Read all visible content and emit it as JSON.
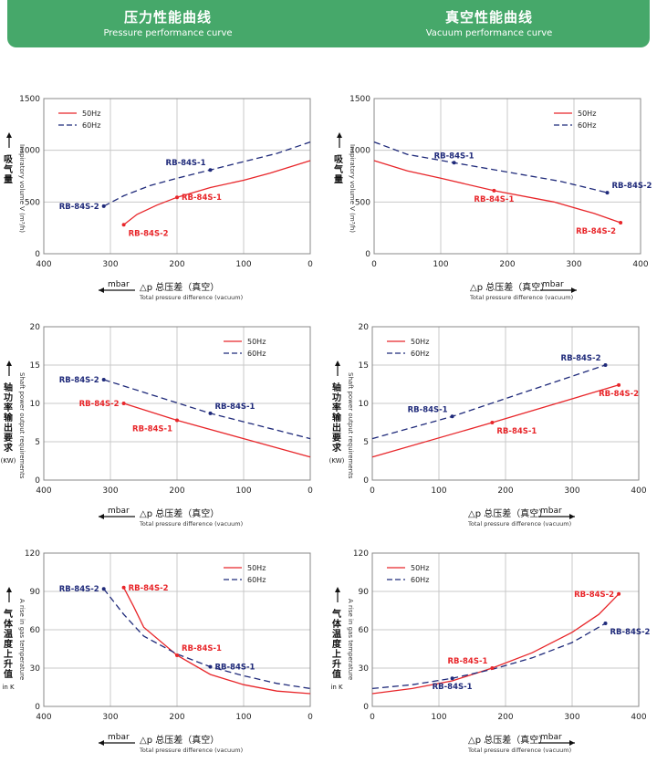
{
  "header": {
    "left_title": "压力性能曲线",
    "left_subtitle": "Pressure performance curve",
    "right_title": "真空性能曲线",
    "right_subtitle": "Vacuum performance curve"
  },
  "colors": {
    "hz50": "#e8262a",
    "hz60": "#1f2a7a",
    "header_bg": "#46a86a",
    "grid": "#c8c8c8"
  },
  "chart_data": [
    {
      "type": "line",
      "ylabel_cn": "吸气量",
      "ylabel_en": "Inspiratory volume",
      "ylabel_unit": "V (m³/h)",
      "xlabel_arrow": "mbar",
      "xlabel_cn": "△p 总压差（真空）",
      "xlabel_en": "Total pressure difference (vacuum)",
      "xlim": [
        400,
        0
      ],
      "ylim": [
        0,
        1500
      ],
      "xticks": [
        400,
        300,
        200,
        100,
        0
      ],
      "yticks": [
        0,
        500,
        1000,
        1500
      ],
      "legend": "top-left",
      "series": [
        {
          "name": "50Hz",
          "style": "solid",
          "x": [
            280,
            260,
            230,
            200,
            150,
            100,
            60,
            0
          ],
          "y": [
            280,
            380,
            470,
            545,
            640,
            710,
            780,
            900
          ]
        },
        {
          "name": "60Hz",
          "style": "dashed",
          "x": [
            310,
            280,
            240,
            200,
            150,
            100,
            50,
            0
          ],
          "y": [
            460,
            560,
            660,
            730,
            810,
            890,
            970,
            1080
          ]
        }
      ],
      "labels": [
        {
          "text": "RB-84S-1",
          "x": 150,
          "y": 810,
          "series": 1,
          "pos": "above-left"
        },
        {
          "text": "RB-84S-2",
          "x": 310,
          "y": 460,
          "series": 1,
          "pos": "left"
        },
        {
          "text": "RB-84S-1",
          "x": 200,
          "y": 545,
          "series": 0,
          "pos": "right"
        },
        {
          "text": "RB-84S-2",
          "x": 280,
          "y": 280,
          "series": 0,
          "pos": "below-right"
        }
      ]
    },
    {
      "type": "line",
      "ylabel_cn": "吸气量",
      "ylabel_en": "Inspiratory volume",
      "ylabel_unit": "V (m³/h)",
      "xlabel_arrow": "mbar",
      "xlabel_cn": "△p 总压差（真空）",
      "xlabel_en": "Total pressure difference (vacuum)",
      "xlim": [
        0,
        400
      ],
      "ylim": [
        0,
        1500
      ],
      "xticks": [
        0,
        100,
        200,
        300,
        400
      ],
      "yticks": [
        0,
        500,
        1000,
        1500
      ],
      "legend": "top-right",
      "series": [
        {
          "name": "50Hz",
          "style": "solid",
          "x": [
            0,
            50,
            100,
            180,
            270,
            330,
            370
          ],
          "y": [
            900,
            800,
            730,
            610,
            500,
            390,
            300
          ]
        },
        {
          "name": "60Hz",
          "style": "dashed",
          "x": [
            0,
            50,
            120,
            200,
            280,
            350
          ],
          "y": [
            1080,
            960,
            880,
            790,
            700,
            590
          ]
        }
      ],
      "labels": [
        {
          "text": "RB-84S-1",
          "x": 120,
          "y": 880,
          "series": 1,
          "pos": "above"
        },
        {
          "text": "RB-84S-2",
          "x": 350,
          "y": 590,
          "series": 1,
          "pos": "above-right"
        },
        {
          "text": "RB-84S-1",
          "x": 180,
          "y": 610,
          "series": 0,
          "pos": "below"
        },
        {
          "text": "RB-84S-2",
          "x": 370,
          "y": 300,
          "series": 0,
          "pos": "below-left"
        }
      ]
    },
    {
      "type": "line",
      "ylabel_cn": "轴功率输出要求",
      "ylabel_en": "Shaft power output requirements",
      "ylabel_unit": "(KW)",
      "xlabel_arrow": "mbar",
      "xlabel_cn": "△p 总压差（真空）",
      "xlabel_en": "Total pressure difference (vacuum)",
      "xlim": [
        400,
        0
      ],
      "ylim": [
        0,
        20
      ],
      "xticks": [
        400,
        300,
        200,
        100,
        0
      ],
      "yticks": [
        0,
        5,
        10,
        15,
        20
      ],
      "legend": "top-right",
      "series": [
        {
          "name": "50Hz",
          "style": "solid",
          "x": [
            280,
            200,
            100,
            0
          ],
          "y": [
            10.0,
            7.8,
            5.4,
            3.0
          ]
        },
        {
          "name": "60Hz",
          "style": "dashed",
          "x": [
            310,
            150,
            0
          ],
          "y": [
            13.1,
            8.7,
            5.4
          ]
        }
      ],
      "labels": [
        {
          "text": "RB-84S-2",
          "x": 310,
          "y": 13.1,
          "series": 1,
          "pos": "left"
        },
        {
          "text": "RB-84S-1",
          "x": 150,
          "y": 8.7,
          "series": 1,
          "pos": "above-right"
        },
        {
          "text": "RB-84S-2",
          "x": 280,
          "y": 10.0,
          "series": 0,
          "pos": "left"
        },
        {
          "text": "RB-84S-1",
          "x": 200,
          "y": 7.8,
          "series": 0,
          "pos": "below-left"
        }
      ]
    },
    {
      "type": "line",
      "ylabel_cn": "轴功率输出要求",
      "ylabel_en": "Shaft power output requirements",
      "ylabel_unit": "(KW)",
      "xlabel_arrow": "mbar",
      "xlabel_cn": "△p 总压差（真空）",
      "xlabel_en": "Total pressure difference (vacuum)",
      "xlim": [
        0,
        400
      ],
      "ylim": [
        0,
        20
      ],
      "xticks": [
        0,
        100,
        200,
        300,
        400
      ],
      "yticks": [
        0,
        5,
        10,
        15,
        20
      ],
      "legend": "top-left",
      "series": [
        {
          "name": "50Hz",
          "style": "solid",
          "x": [
            0,
            180,
            370
          ],
          "y": [
            3.0,
            7.5,
            12.4
          ]
        },
        {
          "name": "60Hz",
          "style": "dashed",
          "x": [
            0,
            120,
            350
          ],
          "y": [
            5.4,
            8.3,
            15.0
          ]
        }
      ],
      "labels": [
        {
          "text": "RB-84S-1",
          "x": 120,
          "y": 8.3,
          "series": 1,
          "pos": "above-left"
        },
        {
          "text": "RB-84S-2",
          "x": 350,
          "y": 15.0,
          "series": 1,
          "pos": "above-left"
        },
        {
          "text": "RB-84S-1",
          "x": 180,
          "y": 7.5,
          "series": 0,
          "pos": "below-right"
        },
        {
          "text": "RB-84S-2",
          "x": 370,
          "y": 12.4,
          "series": 0,
          "pos": "below"
        }
      ]
    },
    {
      "type": "line",
      "ylabel_cn": "气体温度上升值",
      "ylabel_en": "A rise in gas temperature",
      "ylabel_unit": "in K",
      "xlabel_arrow": "mbar",
      "xlabel_cn": "△p 总压差（真空）",
      "xlabel_en": "Total pressure difference (vacuum)",
      "xlim": [
        400,
        0
      ],
      "ylim": [
        0,
        120
      ],
      "xticks": [
        400,
        300,
        200,
        100,
        0
      ],
      "yticks": [
        0,
        30,
        60,
        90,
        120
      ],
      "legend": "top-right",
      "series": [
        {
          "name": "50Hz",
          "style": "solid",
          "x": [
            280,
            265,
            250,
            200,
            150,
            100,
            50,
            0
          ],
          "y": [
            93,
            78,
            62,
            40,
            25,
            17,
            12,
            10
          ]
        },
        {
          "name": "60Hz",
          "style": "dashed",
          "x": [
            310,
            280,
            250,
            200,
            150,
            100,
            50,
            0
          ],
          "y": [
            92,
            72,
            55,
            41,
            31,
            24,
            18,
            14
          ]
        }
      ],
      "labels": [
        {
          "text": "RB-84S-2",
          "x": 310,
          "y": 92,
          "series": 1,
          "pos": "left"
        },
        {
          "text": "RB-84S-1",
          "x": 150,
          "y": 31,
          "series": 1,
          "pos": "right"
        },
        {
          "text": "RB-84S-2",
          "x": 280,
          "y": 93,
          "series": 0,
          "pos": "right"
        },
        {
          "text": "RB-84S-1",
          "x": 200,
          "y": 40,
          "series": 0,
          "pos": "above-right"
        }
      ]
    },
    {
      "type": "line",
      "ylabel_cn": "气体温度上升值",
      "ylabel_en": "A rise in gas temperature",
      "ylabel_unit": "in K",
      "xlabel_arrow": "mbar",
      "xlabel_cn": "△p 总压差（真空）",
      "xlabel_en": "Total pressure difference (vacuum)",
      "xlim": [
        0,
        400
      ],
      "ylim": [
        0,
        120
      ],
      "xticks": [
        0,
        100,
        200,
        300,
        400
      ],
      "yticks": [
        0,
        30,
        60,
        90,
        120
      ],
      "legend": "top-left",
      "series": [
        {
          "name": "50Hz",
          "style": "solid",
          "x": [
            0,
            60,
            120,
            180,
            240,
            300,
            340,
            370
          ],
          "y": [
            10,
            14,
            20,
            30,
            42,
            58,
            72,
            88
          ]
        },
        {
          "name": "60Hz",
          "style": "dashed",
          "x": [
            0,
            60,
            120,
            180,
            240,
            300,
            350
          ],
          "y": [
            14,
            17,
            22,
            29,
            38,
            50,
            65
          ]
        }
      ],
      "labels": [
        {
          "text": "RB-84S-1",
          "x": 120,
          "y": 22,
          "series": 1,
          "pos": "below"
        },
        {
          "text": "RB-84S-2",
          "x": 350,
          "y": 65,
          "series": 1,
          "pos": "below-right"
        },
        {
          "text": "RB-84S-1",
          "x": 180,
          "y": 30,
          "series": 0,
          "pos": "above-left"
        },
        {
          "text": "RB-84S-2",
          "x": 370,
          "y": 88,
          "series": 0,
          "pos": "left"
        }
      ]
    }
  ]
}
